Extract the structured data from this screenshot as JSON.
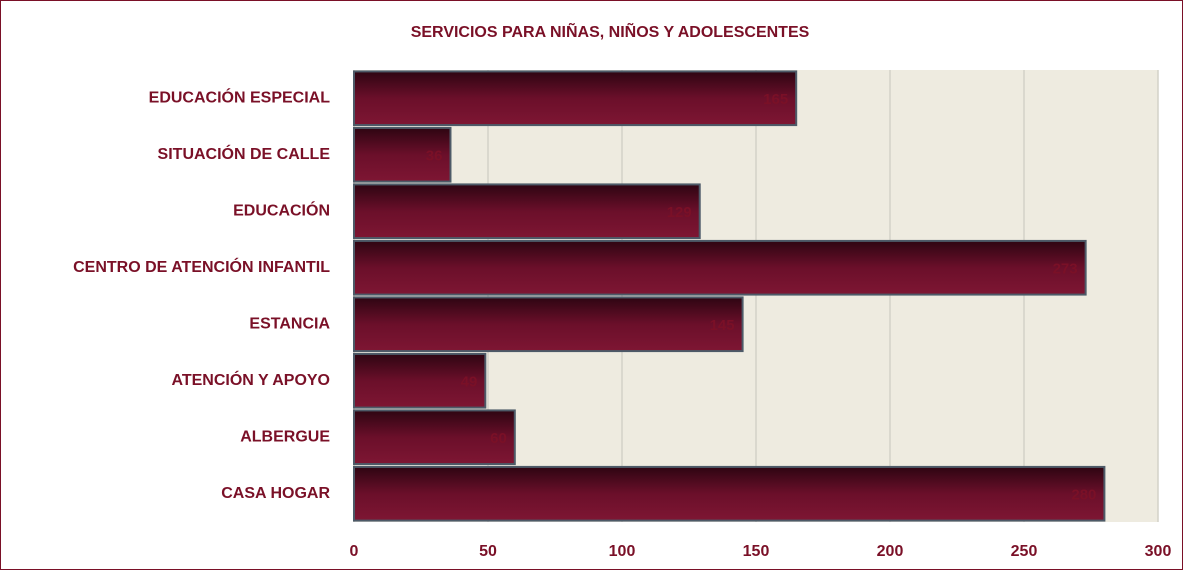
{
  "chart_data": {
    "type": "bar",
    "orientation": "horizontal",
    "title": "SERVICIOS PARA NIÑAS, NIÑOS Y ADOLESCENTES",
    "categories": [
      "EDUCACIÓN ESPECIAL",
      "SITUACIÓN DE CALLE",
      "EDUCACIÓN",
      "CENTRO DE ATENCIÓN INFANTIL",
      "ESTANCIA",
      "ATENCIÓN Y APOYO",
      "ALBERGUE",
      "CASA HOGAR"
    ],
    "values": [
      165,
      36,
      129,
      273,
      145,
      49,
      60,
      280
    ],
    "color": "#6b0f2a",
    "xlim": [
      0,
      300
    ],
    "xticks": [
      0,
      50,
      100,
      150,
      200,
      250,
      300
    ],
    "grid": true
  }
}
